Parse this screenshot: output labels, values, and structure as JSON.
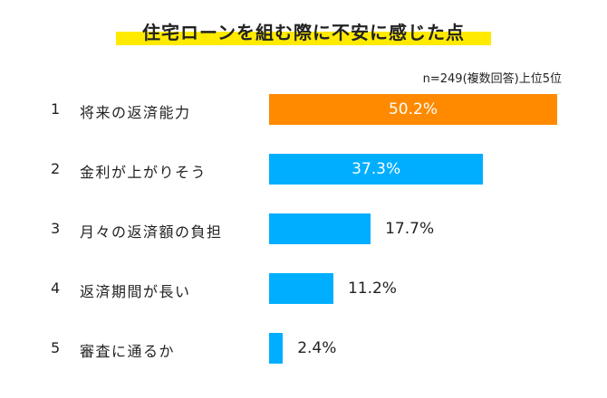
{
  "chart_data": {
    "type": "bar",
    "orientation": "horizontal",
    "title": "住宅ローンを組む際に不安に感じた点",
    "note": "n=249(複数回答)上位5位",
    "ranks": [
      "1",
      "2",
      "3",
      "4",
      "5"
    ],
    "categories": [
      "将来の返済能力",
      "金利が上がりそう",
      "月々の返済額の負担",
      "返済期間が長い",
      "審査に通るか"
    ],
    "values": [
      50.2,
      37.3,
      17.7,
      11.2,
      2.4
    ],
    "labels": [
      "50.2%",
      "37.3%",
      "17.7%",
      "11.2%",
      "2.4%"
    ],
    "unit": "%",
    "colors": [
      "#ff8a00",
      "#00aeff",
      "#00aeff",
      "#00aeff",
      "#00aeff"
    ],
    "xlim": [
      0,
      50.2
    ],
    "grid": false
  }
}
